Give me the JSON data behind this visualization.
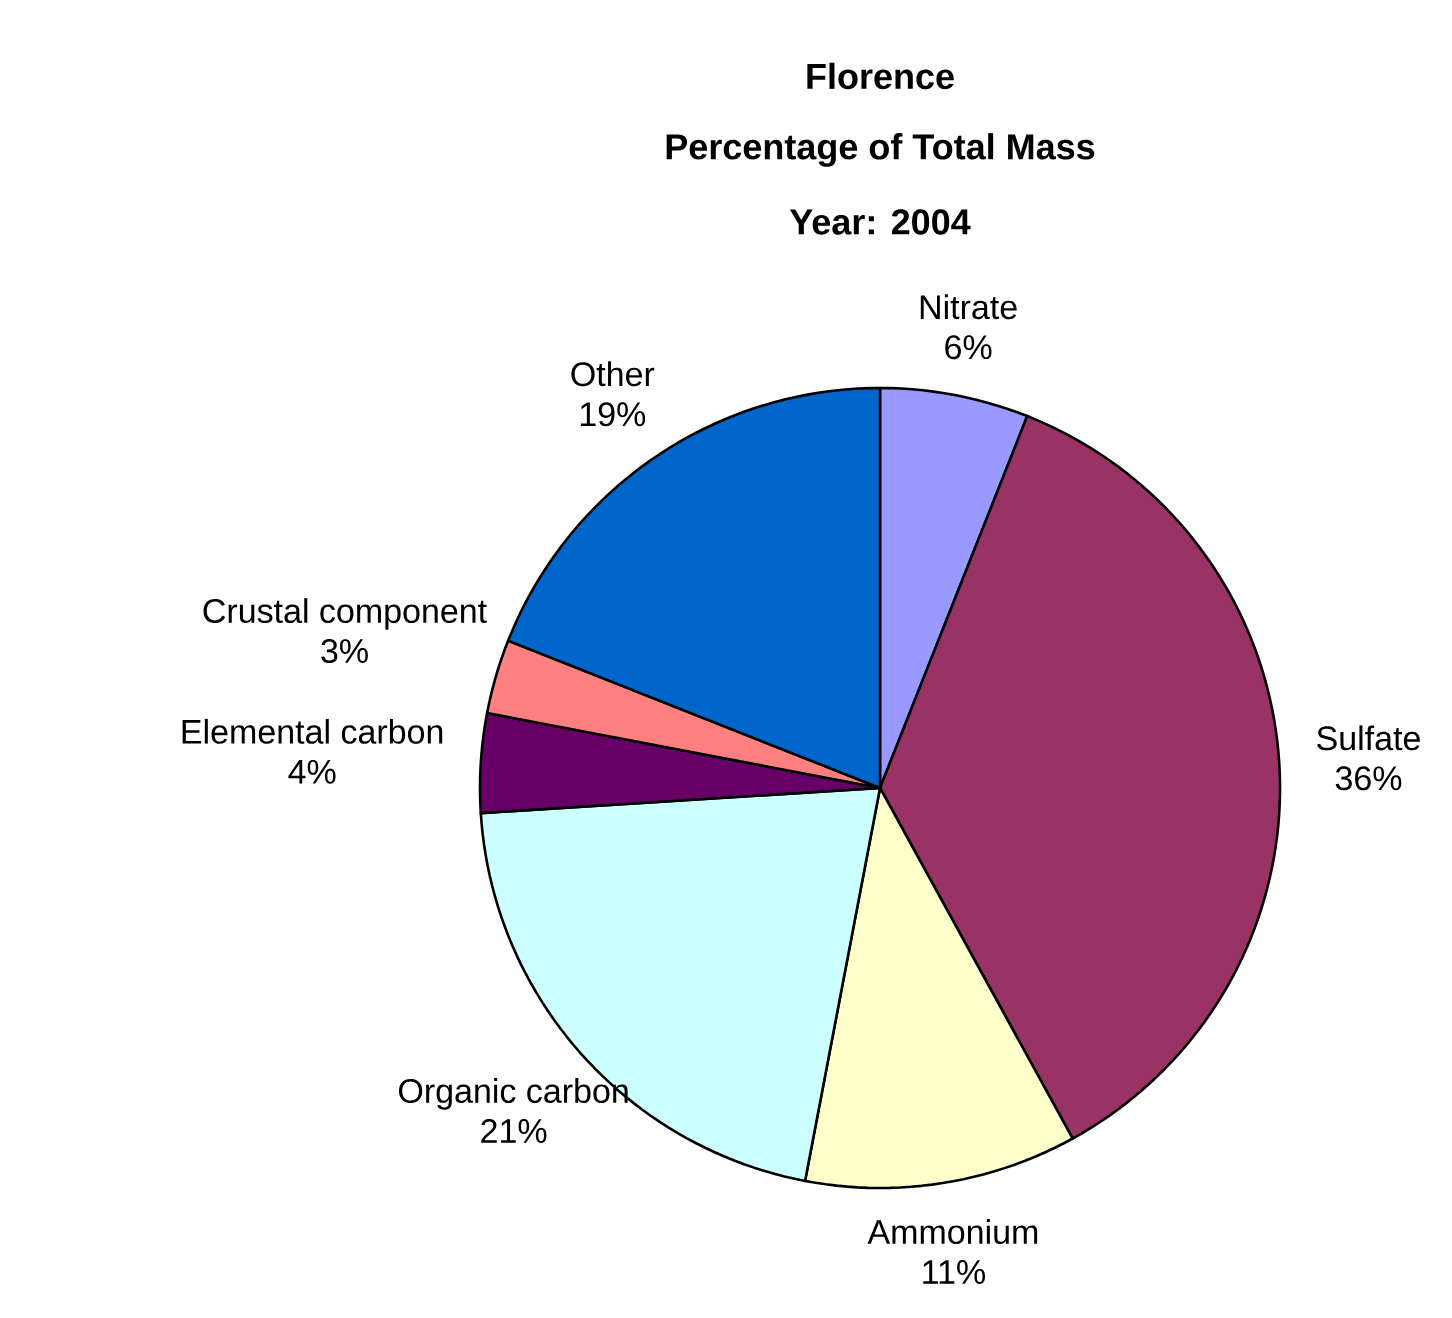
{
  "chart_data": {
    "type": "pie",
    "title": "Florence",
    "subtitle": "Percentage of Total Mass",
    "annotations": [
      "Year: 2004"
    ],
    "categories": [
      "Nitrate",
      "Sulfate",
      "Ammonium",
      "Organic carbon",
      "Elemental carbon",
      "Crustal component",
      "Other"
    ],
    "values": [
      6,
      36,
      11,
      21,
      4,
      3,
      19
    ],
    "value_labels": [
      "6%",
      "36%",
      "11%",
      "21%",
      "4%",
      "3%",
      "19%"
    ],
    "colors": [
      "#9999ff",
      "#993366",
      "#ffffcc",
      "#ccffff",
      "#660066",
      "#ff8080",
      "#0066cc"
    ]
  }
}
